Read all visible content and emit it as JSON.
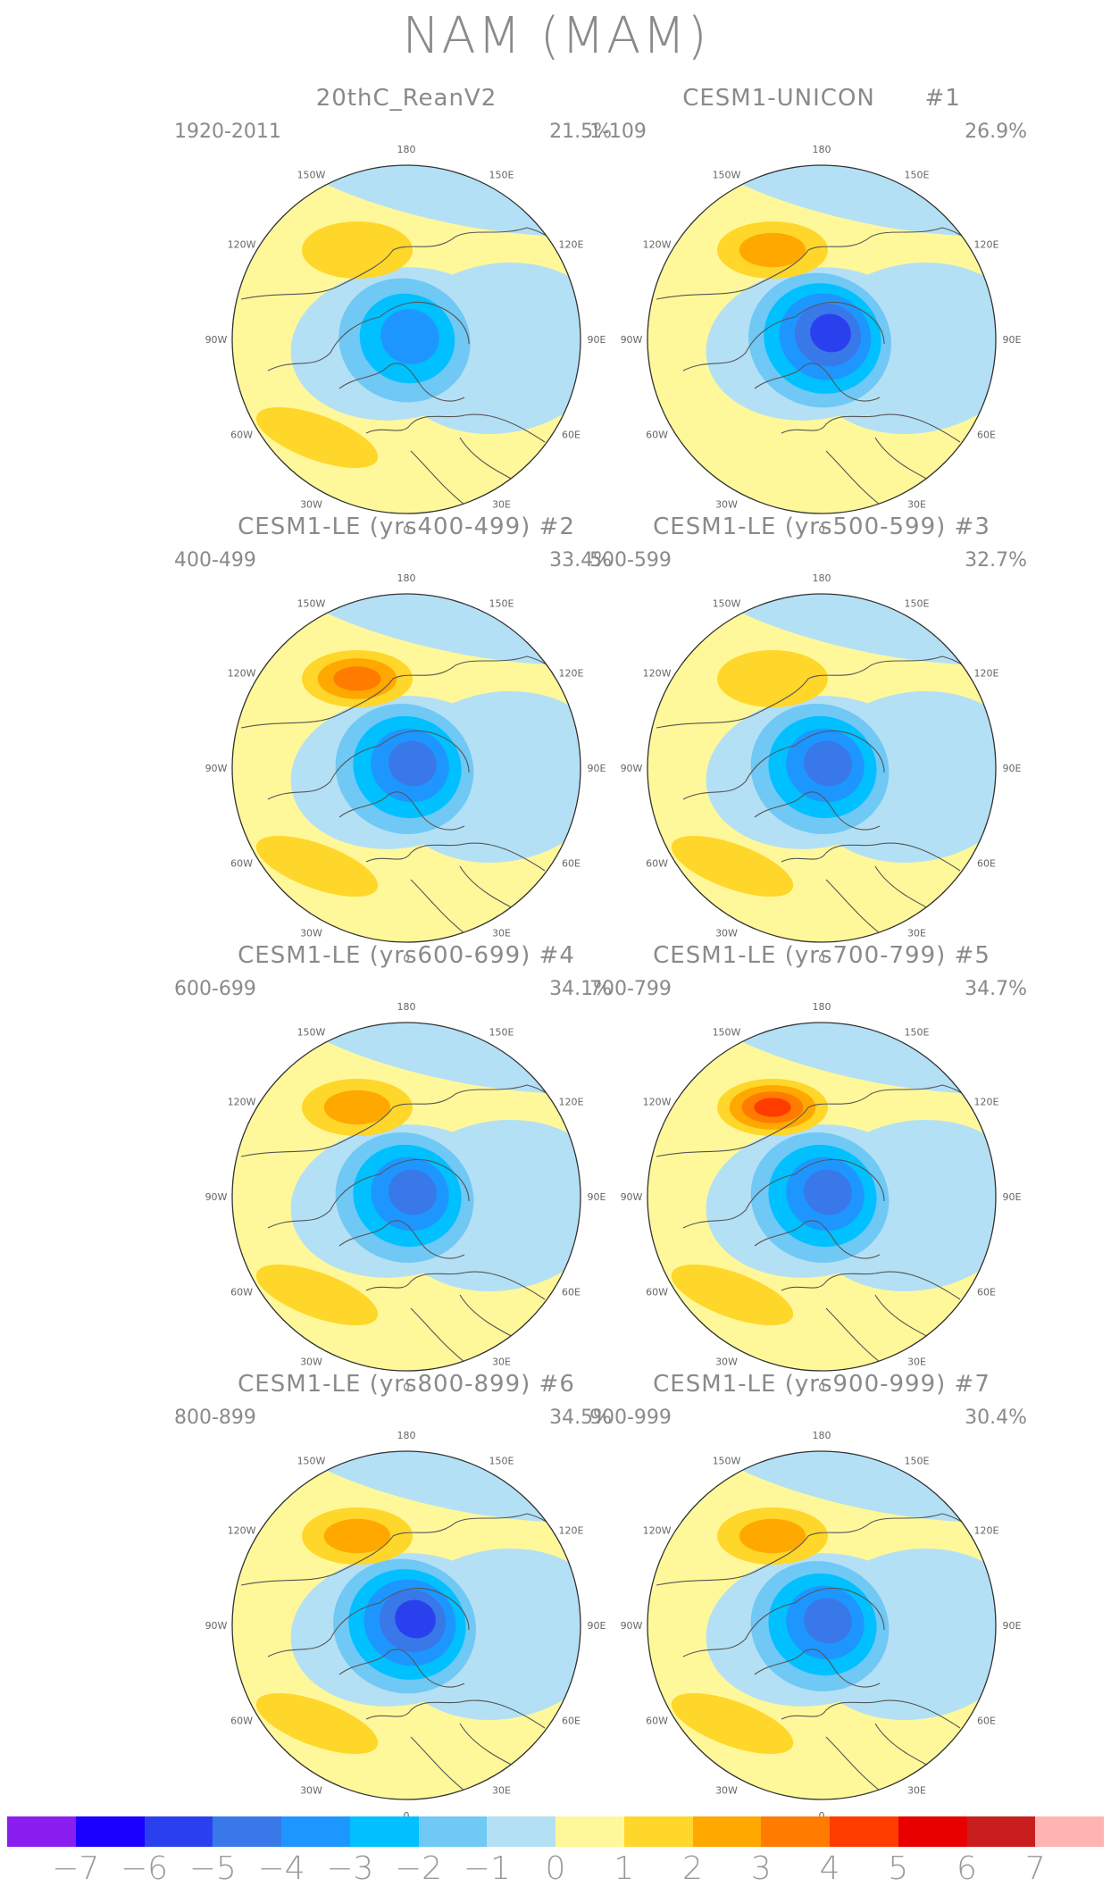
{
  "title": "NAM (MAM)",
  "lon_labels": [
    "180",
    "150E",
    "120E",
    "90E",
    "60E",
    "30E",
    "0",
    "30W",
    "60W",
    "90W",
    "120W",
    "150W"
  ],
  "panels": [
    {
      "title": "20thC_ReanV2",
      "period": "1920-2011",
      "percent": "21.5%",
      "low_levels": 4,
      "high_levels": 1,
      "low_dx": 0.0,
      "low_dy": 0.0,
      "high_dx": 0.0,
      "high_dy": 0.0,
      "atl_levels": 1
    },
    {
      "title": "CESM1-UNICON      #1",
      "period": "1-109",
      "percent": "26.9%",
      "low_levels": 6,
      "high_levels": 2,
      "low_dx": 0.0,
      "low_dy": 0.0,
      "high_dx": 0.0,
      "high_dy": 0.0,
      "atl_levels": 0
    },
    {
      "title": "CESM1-LE (yrs400-499) #2",
      "period": "400-499",
      "percent": "33.4%",
      "low_levels": 5,
      "high_levels": 3,
      "low_dx": 0.0,
      "low_dy": 0.0,
      "high_dx": 0.0,
      "high_dy": 0.0,
      "atl_levels": 1
    },
    {
      "title": "CESM1-LE (yrs500-599) #3",
      "period": "500-599",
      "percent": "32.7%",
      "low_levels": 5,
      "high_levels": 1,
      "low_dx": 0.0,
      "low_dy": 0.0,
      "high_dx": 0.0,
      "high_dy": 0.0,
      "atl_levels": 1
    },
    {
      "title": "CESM1-LE (yrs600-699) #4",
      "period": "600-699",
      "percent": "34.1%",
      "low_levels": 5,
      "high_levels": 2,
      "low_dx": 0.0,
      "low_dy": 0.0,
      "high_dx": 0.0,
      "high_dy": 0.0,
      "atl_levels": 1
    },
    {
      "title": "CESM1-LE (yrs700-799) #5",
      "period": "700-799",
      "percent": "34.7%",
      "low_levels": 5,
      "high_levels": 4,
      "low_dx": 0.0,
      "low_dy": 0.0,
      "high_dx": 0.0,
      "high_dy": 0.0,
      "atl_levels": 1
    },
    {
      "title": "CESM1-LE (yrs800-899) #6",
      "period": "800-899",
      "percent": "34.5%",
      "low_levels": 6,
      "high_levels": 2,
      "low_dx": 0.0,
      "low_dy": 0.0,
      "high_dx": 0.0,
      "high_dy": 0.0,
      "atl_levels": 1
    },
    {
      "title": "CESM1-LE (yrs900-999) #7",
      "period": "900-999",
      "percent": "30.4%",
      "low_levels": 5,
      "high_levels": 2,
      "low_dx": 0.0,
      "low_dy": 0.0,
      "high_dx": 0.0,
      "high_dy": 0.0,
      "atl_levels": 1
    }
  ],
  "colorbar": {
    "colors": [
      "#8a1ef0",
      "#1a00ff",
      "#2a40ee",
      "#3878e8",
      "#1e96ff",
      "#00c0ff",
      "#70c8f5",
      "#b4e0f5",
      "#fff89a",
      "#ffd62a",
      "#ffa800",
      "#ff7c00",
      "#ff3c00",
      "#e80000",
      "#c81e1e",
      "#ffb4b4"
    ],
    "labels": [
      "-7",
      "-6",
      "-5",
      "-4",
      "-3",
      "-2",
      "-1",
      "0",
      "1",
      "2",
      "3",
      "4",
      "5",
      "6",
      "7"
    ]
  }
}
